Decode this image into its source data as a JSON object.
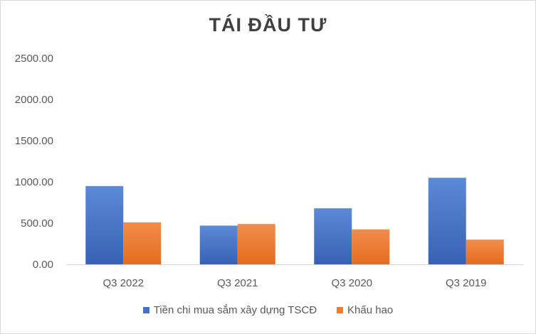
{
  "chart_data": {
    "type": "bar",
    "title": "TÁI ĐẦU TƯ",
    "categories": [
      "Q3 2022",
      "Q3 2021",
      "Q3 2020",
      "Q3 2019"
    ],
    "series": [
      {
        "name": "Tiền chi mua sắm xây dựng TSCĐ",
        "color": "#4472c4",
        "values": [
          950,
          470,
          680,
          1050
        ]
      },
      {
        "name": "Khấu hao",
        "color": "#ed7d31",
        "values": [
          510,
          490,
          425,
          300
        ]
      }
    ],
    "ylim": [
      0,
      2500
    ],
    "yticks": [
      "0.00",
      "500.00",
      "1000.00",
      "1500.00",
      "2000.00",
      "2500.00"
    ],
    "ytick_values": [
      0,
      500,
      1000,
      1500,
      2000,
      2500
    ],
    "grid": false,
    "legend": "bottom"
  }
}
